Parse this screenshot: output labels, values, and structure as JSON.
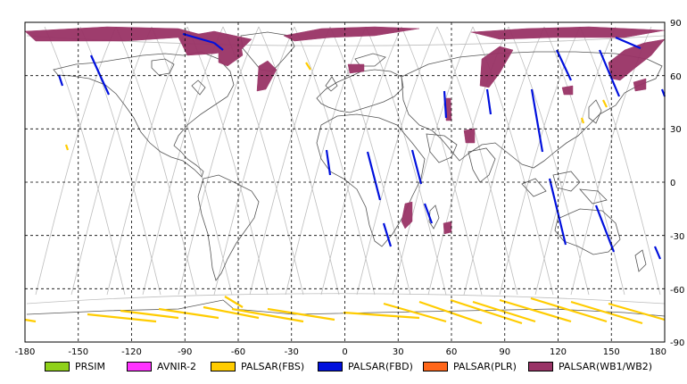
{
  "map": {
    "x_ticks": [
      "-180",
      "-150",
      "-120",
      "-90",
      "-60",
      "-30",
      "0",
      "30",
      "60",
      "90",
      "120",
      "150",
      "180"
    ],
    "y_ticks": [
      "90",
      "60",
      "30",
      "0",
      "-30",
      "-60",
      "-90"
    ],
    "grid": "dashed",
    "projection": "equirectangular",
    "lon_range": [
      -180,
      180
    ],
    "lat_range": [
      -90,
      90
    ]
  },
  "legend": [
    {
      "label": "PRSIM",
      "color": "#8fd11a"
    },
    {
      "label": "AVNIR-2",
      "color": "#ff33ff"
    },
    {
      "label": "PALSAR(FBS)",
      "color": "#ffcc00"
    },
    {
      "label": "PALSAR(FBD)",
      "color": "#0010dd"
    },
    {
      "label": "PALSAR(PLR)",
      "color": "#ff6619"
    },
    {
      "label": "PALSAR(WB1/WB2)",
      "color": "#993366"
    }
  ],
  "colors": {
    "coast": "#555555",
    "orbit": "#bdbdbd",
    "grid": "#000000",
    "fbs": "#ffcc00",
    "fbd": "#0010dd",
    "wb": "#993366"
  }
}
